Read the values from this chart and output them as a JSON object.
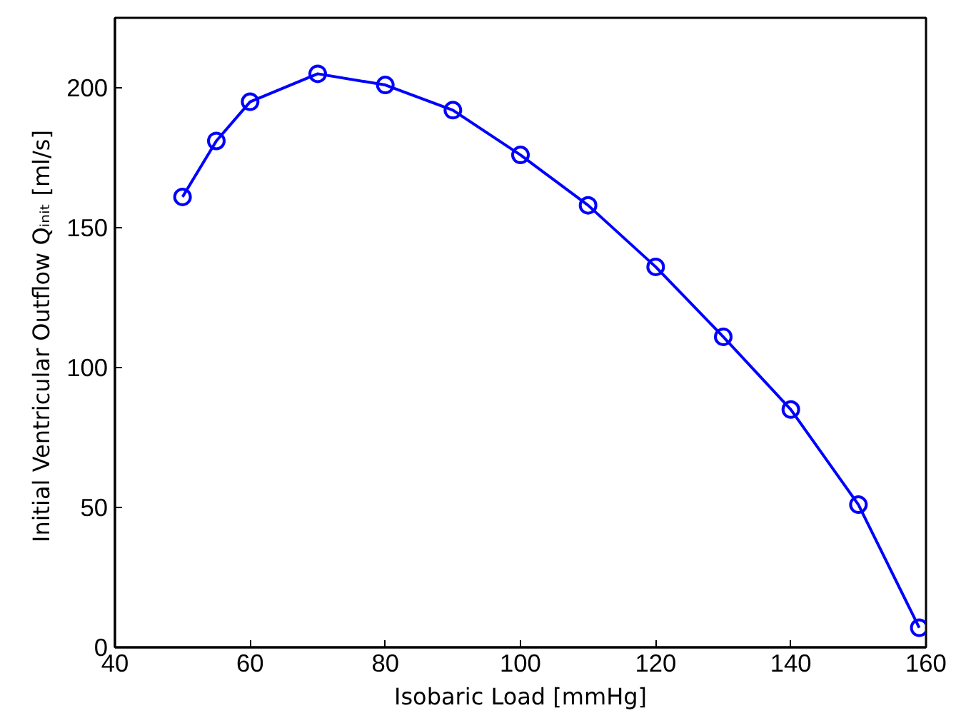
{
  "chart_data": {
    "type": "line",
    "xlabel": "Isobaric Load [mmHg]",
    "ylabel": "Initial Ventricular Outflow Qᵢₙᵢₜ  [ml/s]",
    "x": [
      50,
      55,
      60,
      70,
      80,
      90,
      100,
      110,
      120,
      130,
      140,
      150,
      159
    ],
    "series": [
      {
        "color": "#0000ff",
        "values": [
          161,
          181,
          195,
          205,
          201,
          192,
          176,
          158,
          136,
          111,
          85,
          51,
          7
        ]
      }
    ],
    "xlim": [
      40,
      160
    ],
    "ylim": [
      0,
      225
    ],
    "xticks": [
      40,
      60,
      80,
      100,
      120,
      140,
      160
    ],
    "yticks": [
      0,
      50,
      100,
      150,
      200
    ],
    "marker": "circle",
    "line_style": "solid",
    "grid": false
  }
}
